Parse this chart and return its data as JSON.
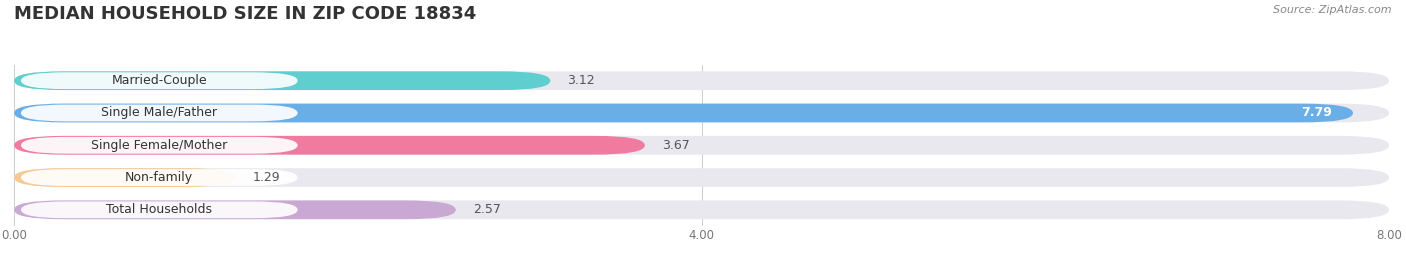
{
  "title": "MEDIAN HOUSEHOLD SIZE IN ZIP CODE 18834",
  "source": "Source: ZipAtlas.com",
  "categories": [
    "Married-Couple",
    "Single Male/Father",
    "Single Female/Mother",
    "Non-family",
    "Total Households"
  ],
  "values": [
    3.12,
    7.79,
    3.67,
    1.29,
    2.57
  ],
  "bar_colors": [
    "#5ecece",
    "#6aaee8",
    "#f07aa0",
    "#f5c990",
    "#c9a8d4"
  ],
  "bar_bg_color": "#e8e8ee",
  "xlim_max": 8.0,
  "xtick_labels": [
    "0.00",
    "4.00",
    "8.00"
  ],
  "value_label_color": "#555555",
  "background_color": "#ffffff",
  "title_fontsize": 13,
  "label_fontsize": 9,
  "value_fontsize": 9,
  "source_fontsize": 8
}
